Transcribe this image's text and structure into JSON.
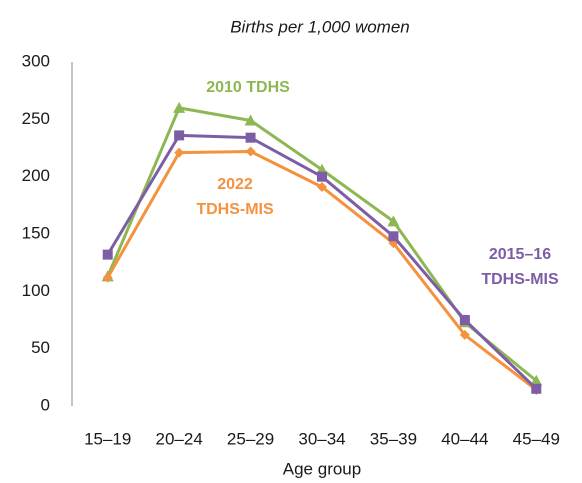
{
  "chart_data": {
    "type": "line",
    "title": "Births per 1,000 women",
    "xlabel": "Age group",
    "categories": [
      "15–19",
      "20–24",
      "25–29",
      "30–34",
      "35–39",
      "40–44",
      "45–49"
    ],
    "series": [
      {
        "name": "2010 TDHS",
        "color": "#8db753",
        "marker": "triangle",
        "values": [
          113,
          260,
          249,
          206,
          161,
          73,
          22
        ]
      },
      {
        "name": "2022 TDHS-MIS",
        "color": "#f4923f",
        "marker": "diamond",
        "values": [
          112,
          221,
          222,
          191,
          142,
          62,
          14
        ]
      },
      {
        "name": "2015–16 TDHS-MIS",
        "color": "#7d5ea6",
        "marker": "square",
        "values": [
          132,
          236,
          234,
          200,
          148,
          75,
          15
        ]
      }
    ],
    "ylim": [
      0,
      300
    ],
    "yticks": [
      0,
      50,
      100,
      150,
      200,
      250,
      300
    ],
    "grid": false
  }
}
